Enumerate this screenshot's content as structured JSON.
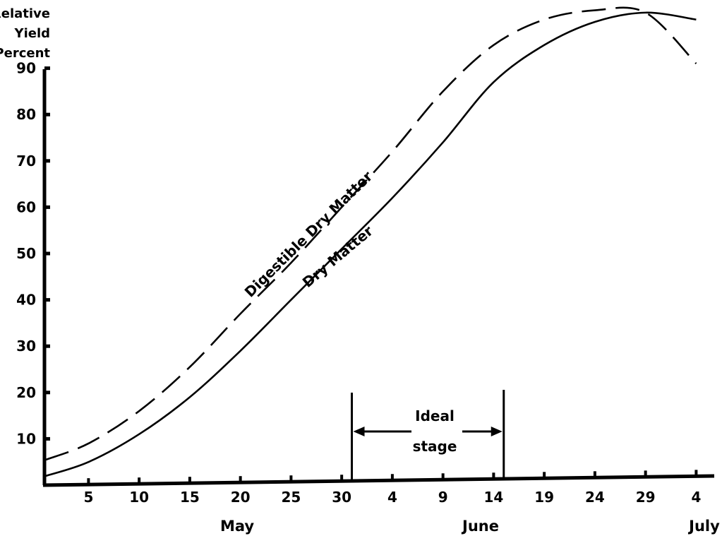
{
  "chart_data": {
    "type": "line",
    "title": "",
    "ylabel_lines": [
      "Relative",
      "Yield",
      "Percent"
    ],
    "xlabel": "",
    "ylim": [
      0,
      100
    ],
    "y_ticks": [
      10,
      20,
      30,
      40,
      50,
      60,
      70,
      80,
      90
    ],
    "grid": false,
    "x_tick_labels": [
      "5",
      "10",
      "15",
      "20",
      "25",
      "30",
      "4",
      "9",
      "14",
      "19",
      "24",
      "29",
      "4"
    ],
    "months": [
      "May",
      "June",
      "July"
    ],
    "series": [
      {
        "name": "Digestible Dry Matter",
        "style": "dashed",
        "x": [
          "May 1",
          "May 5",
          "May 10",
          "May 15",
          "May 20",
          "May 25",
          "May 30",
          "June 4",
          "June 9",
          "June 14",
          "June 19",
          "June 24",
          "June 29",
          "July 4"
        ],
        "y": [
          5.5,
          9,
          16,
          25.5,
          37,
          48,
          60,
          72,
          85,
          95,
          100.5,
          102.5,
          102,
          91
        ]
      },
      {
        "name": "Dry Matter",
        "style": "solid",
        "x": [
          "May 1",
          "May 5",
          "May 10",
          "May 15",
          "May 20",
          "May 25",
          "May 30",
          "June 4",
          "June 9",
          "June 14",
          "June 19",
          "June 24",
          "June 29",
          "July 4"
        ],
        "y": [
          2,
          5,
          11,
          19,
          29,
          40,
          51,
          62,
          74,
          87,
          95,
          100,
          102,
          100.5
        ]
      }
    ],
    "annotation": {
      "text_lines": [
        "Ideal",
        "stage"
      ],
      "start": "May 31",
      "end": "June 15"
    }
  }
}
